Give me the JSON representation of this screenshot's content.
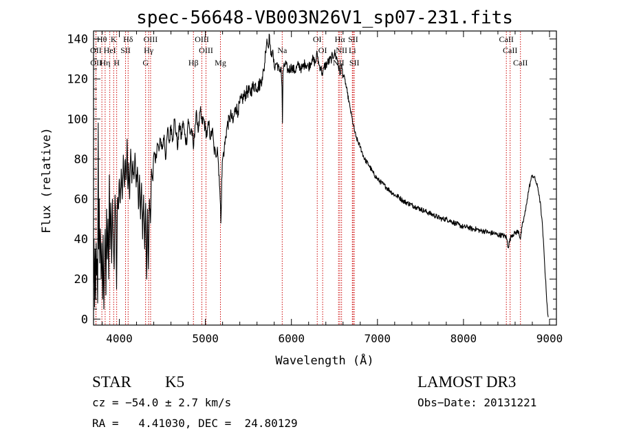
{
  "chart_data": {
    "type": "line",
    "title": "spec-56648-VB003N26V1_sp07-231.fits",
    "xlabel": "Wavelength (Å)",
    "ylabel": "Flux (relative)",
    "xlim": [
      3700,
      9080
    ],
    "ylim": [
      -3,
      144
    ],
    "xticks": [
      4000,
      5000,
      6000,
      7000,
      8000,
      9000
    ],
    "yticks": [
      0,
      20,
      40,
      60,
      80,
      100,
      120,
      140
    ],
    "spectrum_anchors": [
      [
        3700,
        18
      ],
      [
        3705,
        40
      ],
      [
        3712,
        6
      ],
      [
        3718,
        35
      ],
      [
        3724,
        10
      ],
      [
        3730,
        38
      ],
      [
        3736,
        22
      ],
      [
        3742,
        30
      ],
      [
        3748,
        8
      ],
      [
        3754,
        98
      ],
      [
        3760,
        35
      ],
      [
        3766,
        60
      ],
      [
        3772,
        28
      ],
      [
        3780,
        45
      ],
      [
        3788,
        20
      ],
      [
        3796,
        38
      ],
      [
        3805,
        10
      ],
      [
        3812,
        42
      ],
      [
        3820,
        5
      ],
      [
        3828,
        28
      ],
      [
        3836,
        45
      ],
      [
        3844,
        12
      ],
      [
        3852,
        55
      ],
      [
        3860,
        30
      ],
      [
        3868,
        50
      ],
      [
        3876,
        20
      ],
      [
        3884,
        72
      ],
      [
        3892,
        35
      ],
      [
        3900,
        58
      ],
      [
        3910,
        28
      ],
      [
        3920,
        60
      ],
      [
        3930,
        40
      ],
      [
        3940,
        25
      ],
      [
        3950,
        62
      ],
      [
        3960,
        50
      ],
      [
        3968,
        15
      ],
      [
        3978,
        60
      ],
      [
        3990,
        55
      ],
      [
        4000,
        70
      ],
      [
        4010,
        58
      ],
      [
        4022,
        75
      ],
      [
        4034,
        60
      ],
      [
        4046,
        82
      ],
      [
        4058,
        66
      ],
      [
        4070,
        80
      ],
      [
        4080,
        70
      ],
      [
        4090,
        90
      ],
      [
        4100,
        65
      ],
      [
        4110,
        78
      ],
      [
        4120,
        60
      ],
      [
        4132,
        85
      ],
      [
        4145,
        68
      ],
      [
        4158,
        79
      ],
      [
        4170,
        70
      ],
      [
        4182,
        83
      ],
      [
        4196,
        66
      ],
      [
        4210,
        76
      ],
      [
        4222,
        55
      ],
      [
        4234,
        72
      ],
      [
        4246,
        50
      ],
      [
        4258,
        68
      ],
      [
        4270,
        40
      ],
      [
        4282,
        62
      ],
      [
        4294,
        35
      ],
      [
        4306,
        58
      ],
      [
        4316,
        20
      ],
      [
        4328,
        55
      ],
      [
        4338,
        25
      ],
      [
        4350,
        60
      ],
      [
        4362,
        48
      ],
      [
        4374,
        75
      ],
      [
        4386,
        70
      ],
      [
        4400,
        82
      ],
      [
        4420,
        78
      ],
      [
        4440,
        88
      ],
      [
        4460,
        84
      ],
      [
        4480,
        90
      ],
      [
        4500,
        85
      ],
      [
        4520,
        92
      ],
      [
        4540,
        80
      ],
      [
        4560,
        95
      ],
      [
        4580,
        88
      ],
      [
        4600,
        97
      ],
      [
        4620,
        90
      ],
      [
        4640,
        100
      ],
      [
        4660,
        93
      ],
      [
        4680,
        86
      ],
      [
        4700,
        98
      ],
      [
        4720,
        90
      ],
      [
        4740,
        99
      ],
      [
        4760,
        92
      ],
      [
        4780,
        88
      ],
      [
        4800,
        100
      ],
      [
        4820,
        93
      ],
      [
        4840,
        95
      ],
      [
        4861,
        85
      ],
      [
        4880,
        97
      ],
      [
        4900,
        102
      ],
      [
        4920,
        94
      ],
      [
        4940,
        104
      ],
      [
        4960,
        98
      ],
      [
        4980,
        100
      ],
      [
        5000,
        95
      ],
      [
        5020,
        92
      ],
      [
        5040,
        98
      ],
      [
        5060,
        90
      ],
      [
        5080,
        95
      ],
      [
        5100,
        85
      ],
      [
        5120,
        82
      ],
      [
        5140,
        86
      ],
      [
        5160,
        72
      ],
      [
        5172,
        60
      ],
      [
        5180,
        48
      ],
      [
        5190,
        70
      ],
      [
        5200,
        80
      ],
      [
        5220,
        85
      ],
      [
        5250,
        96
      ],
      [
        5280,
        100
      ],
      [
        5300,
        102
      ],
      [
        5320,
        98
      ],
      [
        5350,
        106
      ],
      [
        5380,
        104
      ],
      [
        5400,
        108
      ],
      [
        5430,
        110
      ],
      [
        5460,
        112
      ],
      [
        5490,
        114
      ],
      [
        5520,
        113
      ],
      [
        5550,
        116
      ],
      [
        5580,
        117
      ],
      [
        5610,
        116
      ],
      [
        5640,
        118
      ],
      [
        5660,
        121
      ],
      [
        5680,
        124
      ],
      [
        5700,
        134
      ],
      [
        5715,
        140
      ],
      [
        5730,
        136
      ],
      [
        5745,
        142
      ],
      [
        5760,
        132
      ],
      [
        5780,
        134
      ],
      [
        5800,
        126
      ],
      [
        5830,
        128
      ],
      [
        5860,
        124
      ],
      [
        5880,
        126
      ],
      [
        5890,
        116
      ],
      [
        5896,
        98
      ],
      [
        5902,
        124
      ],
      [
        5930,
        128
      ],
      [
        5960,
        124
      ],
      [
        6000,
        126
      ],
      [
        6040,
        124
      ],
      [
        6080,
        127
      ],
      [
        6120,
        125
      ],
      [
        6160,
        128
      ],
      [
        6200,
        126
      ],
      [
        6240,
        130
      ],
      [
        6280,
        128
      ],
      [
        6300,
        133
      ],
      [
        6320,
        127
      ],
      [
        6340,
        126
      ],
      [
        6363,
        122
      ],
      [
        6380,
        126
      ],
      [
        6420,
        128
      ],
      [
        6460,
        130
      ],
      [
        6500,
        133
      ],
      [
        6540,
        129
      ],
      [
        6563,
        122
      ],
      [
        6580,
        127
      ],
      [
        6600,
        122
      ],
      [
        6620,
        120
      ],
      [
        6650,
        113
      ],
      [
        6680,
        106
      ],
      [
        6710,
        99
      ],
      [
        6750,
        91
      ],
      [
        6800,
        86
      ],
      [
        6850,
        80
      ],
      [
        6900,
        77
      ],
      [
        6950,
        73
      ],
      [
        7000,
        70
      ],
      [
        7050,
        68
      ],
      [
        7100,
        66
      ],
      [
        7150,
        64
      ],
      [
        7200,
        62
      ],
      [
        7250,
        61
      ],
      [
        7300,
        59
      ],
      [
        7350,
        58
      ],
      [
        7400,
        57
      ],
      [
        7450,
        56
      ],
      [
        7500,
        55
      ],
      [
        7550,
        54
      ],
      [
        7600,
        53
      ],
      [
        7650,
        52
      ],
      [
        7700,
        51
      ],
      [
        7750,
        50
      ],
      [
        7800,
        50
      ],
      [
        7850,
        49
      ],
      [
        7900,
        48
      ],
      [
        7950,
        47
      ],
      [
        8000,
        46
      ],
      [
        8050,
        46
      ],
      [
        8100,
        45
      ],
      [
        8150,
        45
      ],
      [
        8200,
        44
      ],
      [
        8250,
        44
      ],
      [
        8300,
        43
      ],
      [
        8350,
        43
      ],
      [
        8400,
        42
      ],
      [
        8450,
        42
      ],
      [
        8498,
        41
      ],
      [
        8520,
        36
      ],
      [
        8542,
        40
      ],
      [
        8560,
        42
      ],
      [
        8600,
        43
      ],
      [
        8640,
        44
      ],
      [
        8662,
        40
      ],
      [
        8680,
        46
      ],
      [
        8700,
        50
      ],
      [
        8720,
        54
      ],
      [
        8740,
        60
      ],
      [
        8760,
        65
      ],
      [
        8780,
        69
      ],
      [
        8800,
        72
      ],
      [
        8820,
        71
      ],
      [
        8840,
        69
      ],
      [
        8860,
        66
      ],
      [
        8880,
        62
      ],
      [
        8900,
        55
      ],
      [
        8920,
        45
      ],
      [
        8940,
        30
      ],
      [
        8960,
        15
      ],
      [
        8975,
        5
      ],
      [
        8985,
        1
      ]
    ],
    "lines": [
      {
        "label": "Hθ",
        "wavelength": 3797,
        "row": 1
      },
      {
        "label": "K",
        "wavelength": 3934,
        "row": 1
      },
      {
        "label": "Hδ",
        "wavelength": 4102,
        "row": 1
      },
      {
        "label": "OIII",
        "wavelength": 4363,
        "row": 1
      },
      {
        "label": "OIII",
        "wavelength": 4959,
        "row": 1
      },
      {
        "label": "OI",
        "wavelength": 6300,
        "row": 1
      },
      {
        "label": "Hα",
        "wavelength": 6563,
        "row": 1
      },
      {
        "label": "SII",
        "wavelength": 6717,
        "row": 1
      },
      {
        "label": "CaII",
        "wavelength": 8498,
        "row": 1
      },
      {
        "label": "OII",
        "wavelength": 3727,
        "row": 2
      },
      {
        "label": "HeI",
        "wavelength": 3889,
        "row": 2
      },
      {
        "label": "SII",
        "wavelength": 4072,
        "row": 2
      },
      {
        "label": "Hγ",
        "wavelength": 4340,
        "row": 2
      },
      {
        "label": "OIII",
        "wavelength": 5007,
        "row": 2
      },
      {
        "label": "Na",
        "wavelength": 5893,
        "row": 2
      },
      {
        "label": "OI",
        "wavelength": 6363,
        "row": 2
      },
      {
        "label": "NII",
        "wavelength": 6583,
        "row": 2
      },
      {
        "label": "Li",
        "wavelength": 6708,
        "row": 2
      },
      {
        "label": "CaII",
        "wavelength": 8542,
        "row": 2
      },
      {
        "label": "OII",
        "wavelength": 3729,
        "row": 3
      },
      {
        "label": "Hη",
        "wavelength": 3835,
        "row": 3
      },
      {
        "label": "H",
        "wavelength": 3969,
        "row": 3
      },
      {
        "label": "G",
        "wavelength": 4305,
        "row": 3
      },
      {
        "label": "Hβ",
        "wavelength": 4861,
        "row": 3
      },
      {
        "label": "Mg",
        "wavelength": 5175,
        "row": 3
      },
      {
        "label": "NII",
        "wavelength": 6548,
        "row": 3
      },
      {
        "label": "SII",
        "wavelength": 6731,
        "row": 3
      },
      {
        "label": "CaII",
        "wavelength": 8662,
        "row": 3
      }
    ],
    "colors": {
      "spectrum": "#000000",
      "line_markers": "#cc0000",
      "axes": "#000000"
    }
  },
  "info": {
    "class_label": "STAR",
    "subclass": "K5",
    "survey": "LAMOST DR3",
    "redshift_text": "cz = −54.0 ± 2.7 km/s",
    "obs_date": "Obs−Date: 20131221",
    "coords": "RA =   4.41030, DEC =  24.80129"
  }
}
